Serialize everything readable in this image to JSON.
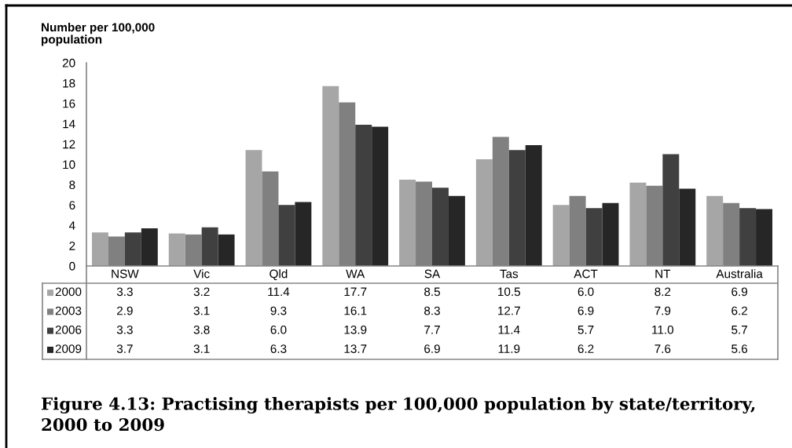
{
  "chart_data": {
    "type": "bar",
    "title": "Figure 4.13: Practising therapists per 100,000 population by state/territory, 2000 to 2009",
    "ylabel": "Number per 100,000 population",
    "categories": [
      "NSW",
      "Vic",
      "Qld",
      "WA",
      "SA",
      "Tas",
      "ACT",
      "NT",
      "Australia"
    ],
    "series": [
      {
        "name": "2000",
        "color": "#a6a6a6",
        "values": [
          3.3,
          3.2,
          11.4,
          17.7,
          8.5,
          10.5,
          6.0,
          8.2,
          6.9
        ],
        "value_labels": [
          "3.3",
          "3.2",
          "11.4",
          "17.7",
          "8.5",
          "10.5",
          "6.0",
          "8.2",
          "6.9"
        ]
      },
      {
        "name": "2003",
        "color": "#808080",
        "values": [
          2.9,
          3.1,
          9.3,
          16.1,
          8.3,
          12.7,
          6.9,
          7.9,
          6.2
        ],
        "value_labels": [
          "2.9",
          "3.1",
          "9.3",
          "16.1",
          "8.3",
          "12.7",
          "6.9",
          "7.9",
          "6.2"
        ]
      },
      {
        "name": "2006",
        "color": "#404040",
        "values": [
          3.3,
          3.8,
          6.0,
          13.9,
          7.7,
          11.4,
          5.7,
          11.0,
          5.7
        ],
        "value_labels": [
          "3.3",
          "3.8",
          "6.0",
          "13.9",
          "7.7",
          "11.4",
          "5.7",
          "11.0",
          "5.7"
        ]
      },
      {
        "name": "2009",
        "color": "#262626",
        "values": [
          3.7,
          3.1,
          6.3,
          13.7,
          6.9,
          11.9,
          6.2,
          7.6,
          5.6
        ],
        "value_labels": [
          "3.7",
          "3.1",
          "6.3",
          "13.7",
          "6.9",
          "11.9",
          "6.2",
          "7.6",
          "5.6"
        ]
      }
    ],
    "ylim": [
      0,
      20
    ],
    "yticks": [
      0,
      2,
      4,
      6,
      8,
      10,
      12,
      14,
      16,
      18,
      20
    ],
    "legend": "bottom"
  }
}
